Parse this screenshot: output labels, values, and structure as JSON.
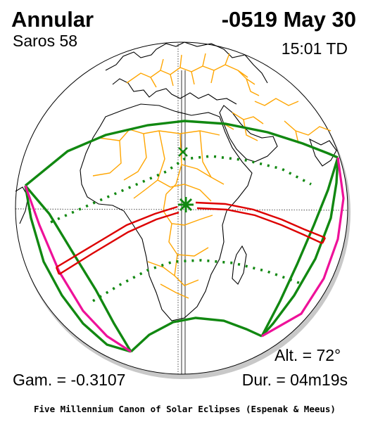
{
  "header": {
    "eclipse_type": "Annular",
    "date": "-0519 May 30",
    "saros": "Saros  58",
    "time": "15:01 TD"
  },
  "footer": {
    "altitude": "Alt. = 72°",
    "gamma": "Gam. = -0.3107",
    "duration": "Dur. = 04m19s",
    "credit": "Five Millennium Canon of Solar Eclipses (Espenak & Meeus)"
  },
  "map_colors": {
    "land_outline": "#000000",
    "borders": "#ffa500",
    "penumbra_limits": "#118811",
    "central_path": "#dd0000",
    "rise_set_curves": "#ee1199",
    "globe_shadow": "#c8c8c8",
    "greatest_eclipse_marker": "#118811"
  }
}
